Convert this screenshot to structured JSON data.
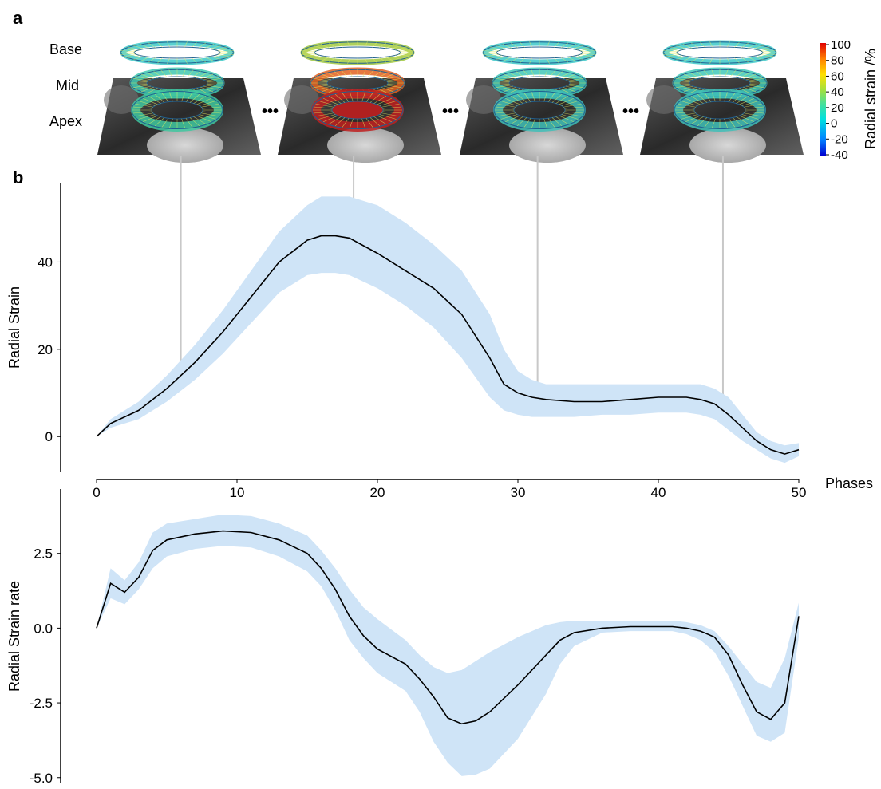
{
  "panel_a": {
    "label": "a",
    "row_labels": [
      "Base",
      "Mid",
      "Apex"
    ],
    "separator": "•••",
    "colorbar": {
      "title": "Radial strain /%",
      "ticks": [
        "100",
        "80",
        "60",
        "40",
        "20",
        "0",
        "-20",
        "-40"
      ],
      "colors": [
        "#0000d0",
        "#0080ff",
        "#00e0e0",
        "#40e0a0",
        "#a0e040",
        "#ffe000",
        "#ff8000",
        "#e00000"
      ]
    }
  },
  "panel_b": {
    "label": "b"
  },
  "chart_data": [
    {
      "type": "line",
      "title": "",
      "xlabel": "Phases",
      "ylabel": "Radial Strain",
      "xlim": [
        0,
        50
      ],
      "ylim": [
        -8,
        58
      ],
      "xticks": [
        "0",
        "10",
        "20",
        "30",
        "40",
        "50"
      ],
      "yticks": [
        "0",
        "20",
        "40"
      ],
      "line_color": "#000000",
      "band_color": "#cfe4f7",
      "x": [
        0,
        1,
        3,
        5,
        7,
        9,
        11,
        13,
        15,
        16,
        17,
        18,
        20,
        22,
        24,
        26,
        28,
        29,
        30,
        31,
        32,
        34,
        36,
        38,
        40,
        42,
        43,
        44,
        45,
        46,
        47,
        48,
        49,
        50
      ],
      "mean": [
        0,
        3,
        6,
        11,
        17,
        24,
        32,
        40,
        45,
        46,
        46,
        45.5,
        42,
        38,
        34,
        28,
        18,
        12,
        10,
        9,
        8.5,
        8,
        8,
        8.5,
        9,
        9,
        8.5,
        7.5,
        5,
        2,
        -1,
        -3,
        -4,
        -3
      ],
      "upper": [
        0,
        4,
        8,
        14,
        21,
        29,
        38,
        47,
        53,
        55,
        55,
        55,
        53,
        49,
        44,
        38,
        28,
        20,
        15,
        13,
        12,
        12,
        12,
        12,
        12,
        12,
        12,
        11,
        9,
        5,
        1,
        -1,
        -2,
        -1.5
      ],
      "lower": [
        0,
        2,
        4,
        8,
        13,
        19,
        26,
        33,
        37,
        37.5,
        37.5,
        37,
        34,
        30,
        25,
        18,
        9,
        6,
        5,
        4.5,
        4.5,
        4.5,
        5,
        5,
        5.5,
        5.5,
        5,
        4,
        1.5,
        -1,
        -3,
        -5,
        -6,
        -4.5
      ],
      "markers_x": [
        6,
        18.3,
        31.4,
        44.6
      ]
    },
    {
      "type": "line",
      "title": "",
      "xlabel": "",
      "ylabel": "Radial Strain rate",
      "xlim": [
        0,
        50
      ],
      "ylim": [
        -5.3,
        4.2
      ],
      "yticks": [
        "2.5",
        "0.0",
        "-2.5",
        "-5.0"
      ],
      "ytick_values": [
        2.5,
        0,
        -2.5,
        -5
      ],
      "line_color": "#000000",
      "band_color": "#cfe4f7",
      "x": [
        0,
        1,
        2,
        3,
        4,
        5,
        7,
        9,
        11,
        13,
        15,
        16,
        17,
        18,
        19,
        20,
        22,
        23,
        24,
        25,
        26,
        27,
        28,
        30,
        32,
        33,
        34,
        36,
        38,
        40,
        41,
        42,
        43,
        44,
        45,
        46,
        47,
        48,
        49,
        50
      ],
      "mean": [
        0,
        1.5,
        1.2,
        1.7,
        2.6,
        2.95,
        3.15,
        3.25,
        3.2,
        2.95,
        2.5,
        2.0,
        1.3,
        0.4,
        -0.25,
        -0.7,
        -1.2,
        -1.7,
        -2.3,
        -3.0,
        -3.2,
        -3.1,
        -2.8,
        -1.9,
        -0.9,
        -0.4,
        -0.15,
        0.0,
        0.05,
        0.05,
        0.05,
        0.0,
        -0.1,
        -0.3,
        -0.9,
        -1.9,
        -2.8,
        -3.05,
        -2.5,
        0.4
      ],
      "upper": [
        0,
        2.0,
        1.6,
        2.2,
        3.2,
        3.5,
        3.65,
        3.8,
        3.75,
        3.5,
        3.1,
        2.6,
        2.0,
        1.3,
        0.7,
        0.3,
        -0.4,
        -0.9,
        -1.3,
        -1.5,
        -1.4,
        -1.1,
        -0.8,
        -0.3,
        0.1,
        0.2,
        0.25,
        0.25,
        0.25,
        0.25,
        0.25,
        0.2,
        0.1,
        -0.1,
        -0.6,
        -1.2,
        -1.8,
        -2.0,
        -1.0,
        0.85
      ],
      "lower": [
        0,
        1.0,
        0.8,
        1.3,
        2.0,
        2.4,
        2.65,
        2.75,
        2.7,
        2.4,
        1.9,
        1.4,
        0.6,
        -0.4,
        -1.0,
        -1.5,
        -2.1,
        -2.8,
        -3.8,
        -4.5,
        -4.95,
        -4.9,
        -4.7,
        -3.7,
        -2.2,
        -1.2,
        -0.6,
        -0.15,
        -0.1,
        -0.1,
        -0.1,
        -0.2,
        -0.4,
        -0.8,
        -1.6,
        -2.6,
        -3.6,
        -3.8,
        -3.5,
        -0.3
      ]
    }
  ]
}
